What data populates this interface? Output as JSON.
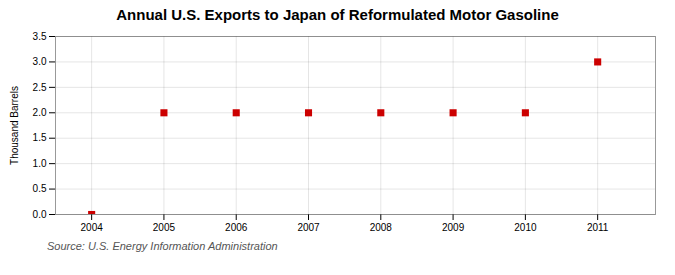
{
  "chart_data": {
    "type": "scatter",
    "title": "Annual U.S. Exports to Japan of Reformulated Motor Gasoline",
    "ylabel": "Thousand Barrels",
    "annotations": [
      "Source: U.S. Energy Information Administration"
    ],
    "x": [
      2004,
      2005,
      2006,
      2007,
      2008,
      2009,
      2010,
      2011
    ],
    "values": [
      0,
      2,
      2,
      2,
      2,
      2,
      2,
      3
    ],
    "color": "#cc0000",
    "marker": "square",
    "xlim": [
      2003.5,
      2011.8
    ],
    "xticks": [
      2004,
      2005,
      2006,
      2007,
      2008,
      2009,
      2010,
      2011
    ],
    "ylim": [
      0,
      3.5
    ],
    "yticks": [
      {
        "value": 0.0,
        "label": "0.0"
      },
      0.5,
      {
        "value": 1.0,
        "label": "1.0"
      },
      1.5,
      {
        "value": 2.0,
        "label": "2.0"
      },
      2.5,
      {
        "value": 3.0,
        "label": "3.0"
      },
      3.5
    ],
    "grid": true
  }
}
